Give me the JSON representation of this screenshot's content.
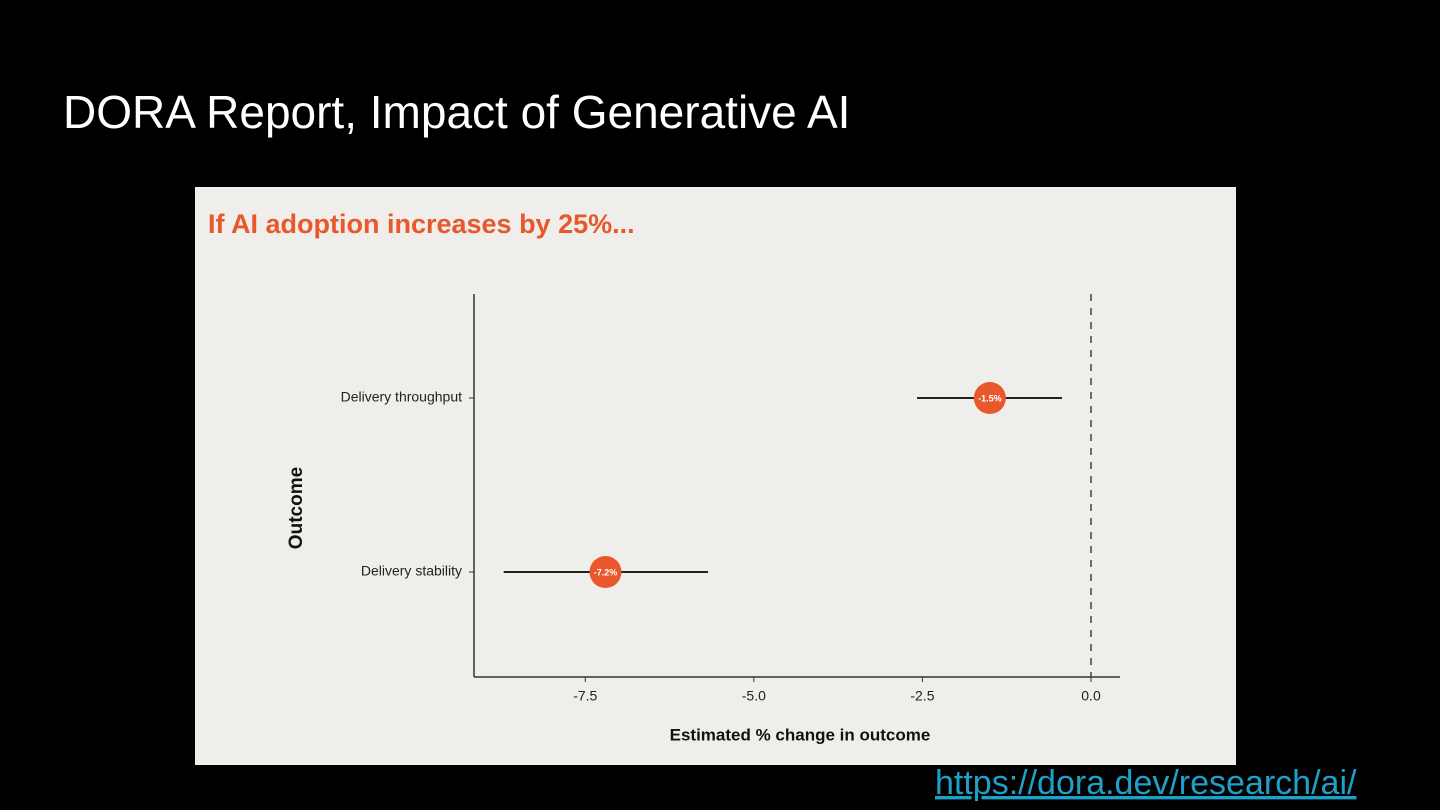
{
  "slide_title": "DORA Report, Impact of Generative AI",
  "link": "https://dora.dev/research/ai/",
  "chart_data": {
    "type": "dot",
    "title": "If AI adoption increases by 25%...",
    "x_label": "Estimated % change in outcome",
    "y_label": "Outcome",
    "categories": [
      "Delivery throughput",
      "Delivery stability"
    ],
    "values": [
      -1.5,
      -7.2
    ],
    "value_labels": [
      "-1.5%",
      "-7.2%"
    ],
    "lower": [
      -2.58,
      -8.71
    ],
    "upper": [
      -0.43,
      -5.68
    ],
    "color": "#e8582c",
    "xlim": [
      -9.15,
      0.43
    ],
    "xticks": [
      -7.5,
      {
        "value": -5.0,
        "label": "-5.0"
      },
      -2.5,
      {
        "value": 0.0,
        "label": "0.0"
      }
    ],
    "reference_line": 0
  }
}
